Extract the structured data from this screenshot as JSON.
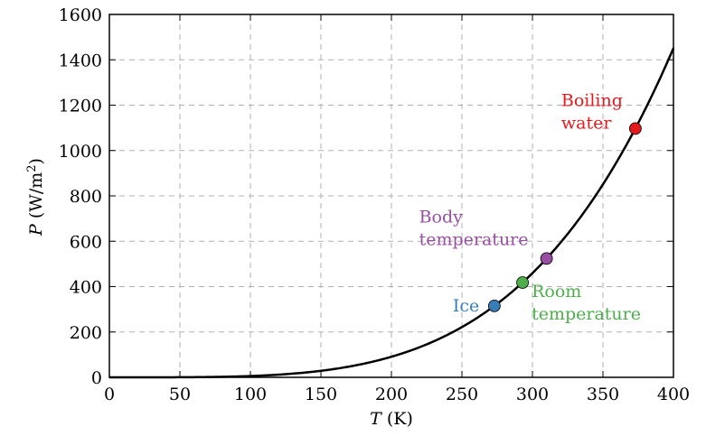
{
  "chart_data": {
    "type": "line",
    "xlabel_var": "T",
    "xlabel_unit": " (K)",
    "ylabel_var": "P",
    "ylabel_unit_pre": " (W/m",
    "ylabel_unit_sup": "2",
    "ylabel_unit_post": ")",
    "xlim": [
      0,
      400
    ],
    "ylim": [
      0,
      1600
    ],
    "xticks": [
      "0",
      "50",
      "100",
      "150",
      "200",
      "250",
      "300",
      "350",
      "400"
    ],
    "yticks": [
      "0",
      "200",
      "400",
      "600",
      "800",
      "1000",
      "1200",
      "1400",
      "1600"
    ],
    "grid": true,
    "curve": {
      "formula": "sigma * T^4",
      "sigma": 5.67e-08,
      "x_range": [
        0,
        400
      ],
      "color": "#000000"
    },
    "points": [
      {
        "label": [
          "Ice"
        ],
        "x": 273,
        "y": 315,
        "color": "#377eb8"
      },
      {
        "label": [
          "Room",
          "temperature"
        ],
        "x": 293,
        "y": 418,
        "color": "#4daf4a"
      },
      {
        "label": [
          "Body",
          "temperature"
        ],
        "x": 310,
        "y": 524,
        "color": "#984ea3"
      },
      {
        "label": [
          "Boiling",
          "water"
        ],
        "x": 373,
        "y": 1097,
        "color": "#e41a1c"
      }
    ]
  }
}
